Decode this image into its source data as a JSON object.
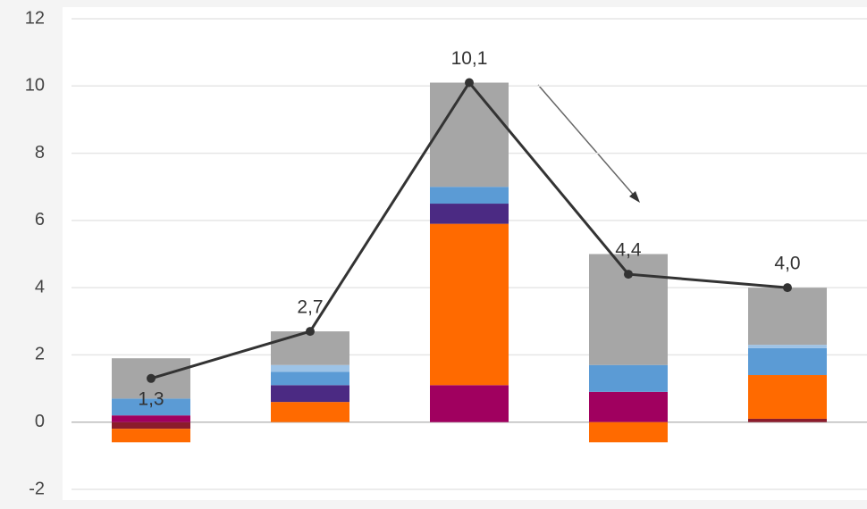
{
  "chart_data": {
    "type": "bar",
    "categories": [
      null,
      null,
      null,
      null,
      null
    ],
    "series": [
      {
        "color": "#8b1c2c",
        "values": [
          -0.2,
          0,
          0,
          0,
          0.1
        ]
      },
      {
        "color": "#a0005f",
        "values": [
          0.2,
          0,
          1.1,
          0.9,
          0
        ]
      },
      {
        "color": "#ff6a00",
        "values": [
          -0.4,
          0.6,
          4.8,
          -0.6,
          1.3
        ]
      },
      {
        "color": "#4b2a83",
        "values": [
          0,
          0.5,
          0.6,
          0,
          0
        ]
      },
      {
        "color": "#5b9bd5",
        "values": [
          0.5,
          0.4,
          0.5,
          0.8,
          0.8
        ]
      },
      {
        "color": "#9dc3e6",
        "values": [
          0,
          0.2,
          0,
          0,
          0.1
        ]
      },
      {
        "color": "#a6a6a6",
        "values": [
          1.2,
          1.0,
          3.1,
          3.3,
          1.7
        ]
      }
    ],
    "line": {
      "color": "#333333",
      "values": [
        1.3,
        2.7,
        10.1,
        4.4,
        4.0
      ],
      "value_labels": [
        "1,3",
        "2,7",
        "10,1",
        "4,4",
        "4,0"
      ]
    },
    "ylim": [
      -2,
      12
    ],
    "yticks": [
      -2,
      0,
      2,
      4,
      6,
      8,
      10,
      12
    ],
    "grid": true
  }
}
